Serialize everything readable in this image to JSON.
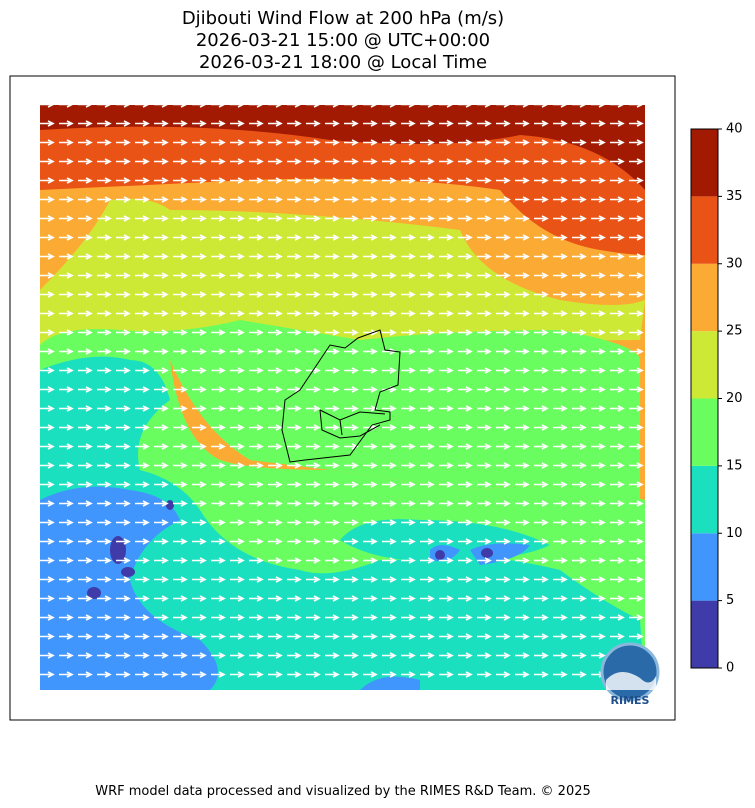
{
  "title": [
    "Djibouti Wind Flow at 200 hPa (m/s)",
    "2026-03-21 15:00 @ UTC+00:00",
    "2026-03-21 18:00 @ Local Time"
  ],
  "colorbar": {
    "ticks": [
      0,
      5,
      10,
      15,
      20,
      25,
      30,
      35,
      40
    ],
    "colors": [
      "#3f3ba8",
      "#4196fd",
      "#1be0c0",
      "#6afd60",
      "#cde935",
      "#fbab33",
      "#ea5316",
      "#a11a01"
    ]
  },
  "logo": "RIMES",
  "footer": "WRF model data processed and visualized by the RIMES R&D Team. © 2025"
}
